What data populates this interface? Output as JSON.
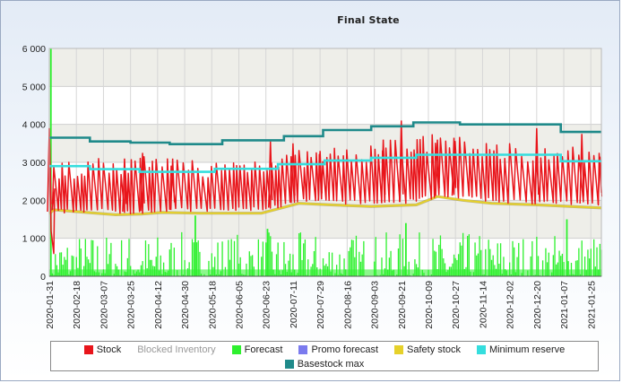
{
  "chart_data": {
    "type": "line",
    "title": "Final State",
    "ylim": [
      0,
      6000
    ],
    "y_ticks": [
      "0",
      "1 000",
      "2 000",
      "3 000",
      "4 000",
      "5 000",
      "6 000"
    ],
    "x_ticks": [
      "2020-01-31",
      "2020-02-18",
      "2020-03-07",
      "2020-03-25",
      "2020-04-12",
      "2020-04-30",
      "2020-05-18",
      "2020-06-05",
      "2020-06-23",
      "2020-07-11",
      "2020-07-29",
      "2020-08-16",
      "2020-09-03",
      "2020-09-21",
      "2020-10-09",
      "2020-10-27",
      "2020-11-14",
      "2020-12-02",
      "2020-12-20",
      "2021-01-07",
      "2021-01-25"
    ],
    "x_range": [
      "2020-01-31",
      "2021-02-01"
    ],
    "legend_position": "bottom",
    "series": [
      {
        "name": "Basestock max",
        "color": "#1f8a8a",
        "type": "step",
        "points": [
          [
            "2020-01-31",
            3650
          ],
          [
            "2020-02-27",
            3650
          ],
          [
            "2020-02-27",
            3550
          ],
          [
            "2020-03-25",
            3550
          ],
          [
            "2020-03-25",
            3520
          ],
          [
            "2020-04-20",
            3520
          ],
          [
            "2020-04-20",
            3480
          ],
          [
            "2020-05-25",
            3480
          ],
          [
            "2020-05-25",
            3580
          ],
          [
            "2020-07-05",
            3580
          ],
          [
            "2020-07-05",
            3690
          ],
          [
            "2020-07-31",
            3690
          ],
          [
            "2020-07-31",
            3850
          ],
          [
            "2020-09-01",
            3850
          ],
          [
            "2020-09-01",
            3950
          ],
          [
            "2020-09-29",
            3950
          ],
          [
            "2020-09-29",
            4050
          ],
          [
            "2020-10-30",
            4050
          ],
          [
            "2020-10-30",
            4000
          ],
          [
            "2021-01-05",
            4000
          ],
          [
            "2021-01-05",
            3800
          ],
          [
            "2021-02-01",
            3800
          ]
        ]
      },
      {
        "name": "Minimum reserve",
        "color": "#35dede",
        "type": "step",
        "points": [
          [
            "2020-01-31",
            2900
          ],
          [
            "2020-02-27",
            2900
          ],
          [
            "2020-02-27",
            2820
          ],
          [
            "2020-03-31",
            2820
          ],
          [
            "2020-03-31",
            2750
          ],
          [
            "2020-05-20",
            2750
          ],
          [
            "2020-05-20",
            2830
          ],
          [
            "2020-07-01",
            2830
          ],
          [
            "2020-07-01",
            2950
          ],
          [
            "2020-08-01",
            2950
          ],
          [
            "2020-08-01",
            3050
          ],
          [
            "2020-09-01",
            3050
          ],
          [
            "2020-09-01",
            3120
          ],
          [
            "2020-10-01",
            3120
          ],
          [
            "2020-10-01",
            3200
          ],
          [
            "2021-01-05",
            3200
          ],
          [
            "2021-01-05",
            3030
          ],
          [
            "2021-02-01",
            3030
          ]
        ]
      },
      {
        "name": "Safety stock",
        "color": "#e6d12a",
        "type": "line",
        "points": [
          [
            "2020-01-31",
            1650
          ],
          [
            "2020-02-03",
            1750
          ],
          [
            "2020-02-25",
            1680
          ],
          [
            "2020-03-15",
            1620
          ],
          [
            "2020-04-01",
            1640
          ],
          [
            "2020-04-15",
            1680
          ],
          [
            "2020-05-10",
            1660
          ],
          [
            "2020-06-20",
            1660
          ],
          [
            "2020-07-15",
            1920
          ],
          [
            "2020-08-05",
            1880
          ],
          [
            "2020-09-01",
            1840
          ],
          [
            "2020-10-01",
            1880
          ],
          [
            "2020-10-15",
            2100
          ],
          [
            "2020-11-01",
            2000
          ],
          [
            "2020-11-20",
            1920
          ],
          [
            "2020-12-20",
            1880
          ],
          [
            "2021-02-01",
            1800
          ]
        ]
      },
      {
        "name": "Stock",
        "color": "#e8151b",
        "type": "line",
        "min_level": [
          [
            "2020-01-31",
            1700
          ],
          [
            "2020-02-25",
            1750
          ],
          [
            "2020-03-20",
            1700
          ],
          [
            "2020-04-25",
            1750
          ],
          [
            "2020-05-25",
            1750
          ],
          [
            "2020-06-25",
            1800
          ],
          [
            "2020-07-20",
            2000
          ],
          [
            "2020-08-20",
            1950
          ],
          [
            "2020-09-20",
            1950
          ],
          [
            "2020-10-20",
            2150
          ],
          [
            "2020-11-20",
            2000
          ],
          [
            "2020-12-20",
            1950
          ],
          [
            "2021-02-01",
            1900
          ]
        ],
        "max_level": [
          [
            "2020-01-31",
            2600
          ],
          [
            "2020-02-25",
            2750
          ],
          [
            "2020-03-20",
            2800
          ],
          [
            "2020-04-25",
            2800
          ],
          [
            "2020-05-25",
            2700
          ],
          [
            "2020-06-25",
            2900
          ],
          [
            "2020-07-20",
            3000
          ],
          [
            "2020-08-20",
            3050
          ],
          [
            "2020-09-20",
            3350
          ],
          [
            "2020-10-20",
            3400
          ],
          [
            "2020-11-20",
            3200
          ],
          [
            "2020-12-20",
            3150
          ],
          [
            "2021-02-01",
            3000
          ]
        ],
        "peaks": [
          [
            "2020-01-31",
            3900
          ],
          [
            "2020-03-21",
            3100
          ],
          [
            "2020-04-02",
            3250
          ],
          [
            "2020-04-22",
            3100
          ],
          [
            "2020-06-26",
            3550
          ],
          [
            "2020-07-11",
            3500
          ],
          [
            "2020-07-29",
            3300
          ],
          [
            "2020-09-09",
            3600
          ],
          [
            "2020-09-21",
            4100
          ],
          [
            "2020-10-15",
            3600
          ],
          [
            "2020-10-26",
            3650
          ],
          [
            "2020-12-20",
            3900
          ],
          [
            "2021-01-19",
            3750
          ],
          [
            "2021-01-31",
            3150
          ]
        ]
      },
      {
        "name": "Forecast",
        "color": "#2ef02e",
        "type": "bar",
        "range": [
          0,
          1300
        ],
        "spikes": [
          [
            "2020-02-01",
            6000
          ],
          [
            "2020-05-07",
            1600
          ],
          [
            "2020-06-24",
            1250
          ],
          [
            "2020-09-24",
            1400
          ],
          [
            "2021-01-09",
            1500
          ]
        ]
      },
      {
        "name": "Blocked Inventory",
        "color": "#aaaaaa",
        "type": "line"
      },
      {
        "name": "Promo forecast",
        "color": "#7b7bee",
        "type": "bar"
      }
    ]
  },
  "legend": {
    "stock": "Stock",
    "blocked": "Blocked Inventory",
    "forecast": "Forecast",
    "promo": "Promo forecast",
    "safety": "Safety stock",
    "minres": "Minimum reserve",
    "basestock": "Basestock max"
  },
  "colors": {
    "stock": "#e8151b",
    "forecast": "#2ef02e",
    "promo": "#7b7bee",
    "safety": "#e6d12a",
    "minres": "#35dede",
    "basestock": "#1f8a8a"
  }
}
